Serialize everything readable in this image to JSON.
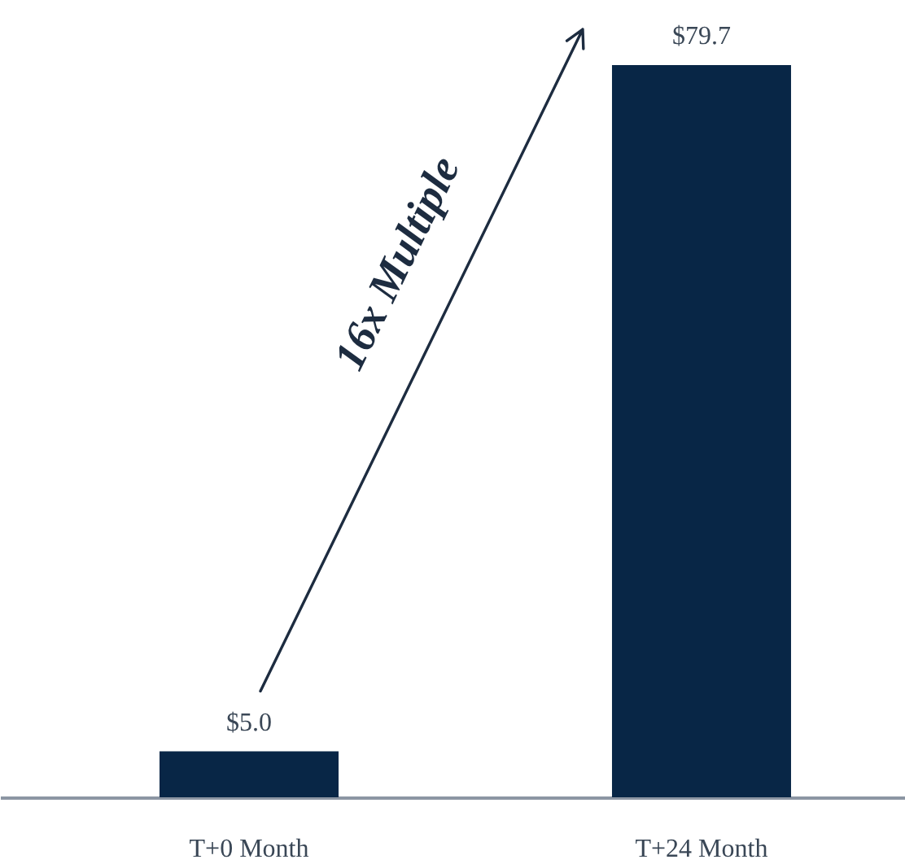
{
  "chart_data": {
    "type": "bar",
    "categories": [
      "T+0 Month",
      "T+24 Month"
    ],
    "values": [
      5.0,
      79.7
    ],
    "color": "#082646",
    "value_labels": [
      "$5.0",
      "$79.7"
    ],
    "annotations": [
      "16x Multiple"
    ],
    "tick_labels": "x"
  }
}
